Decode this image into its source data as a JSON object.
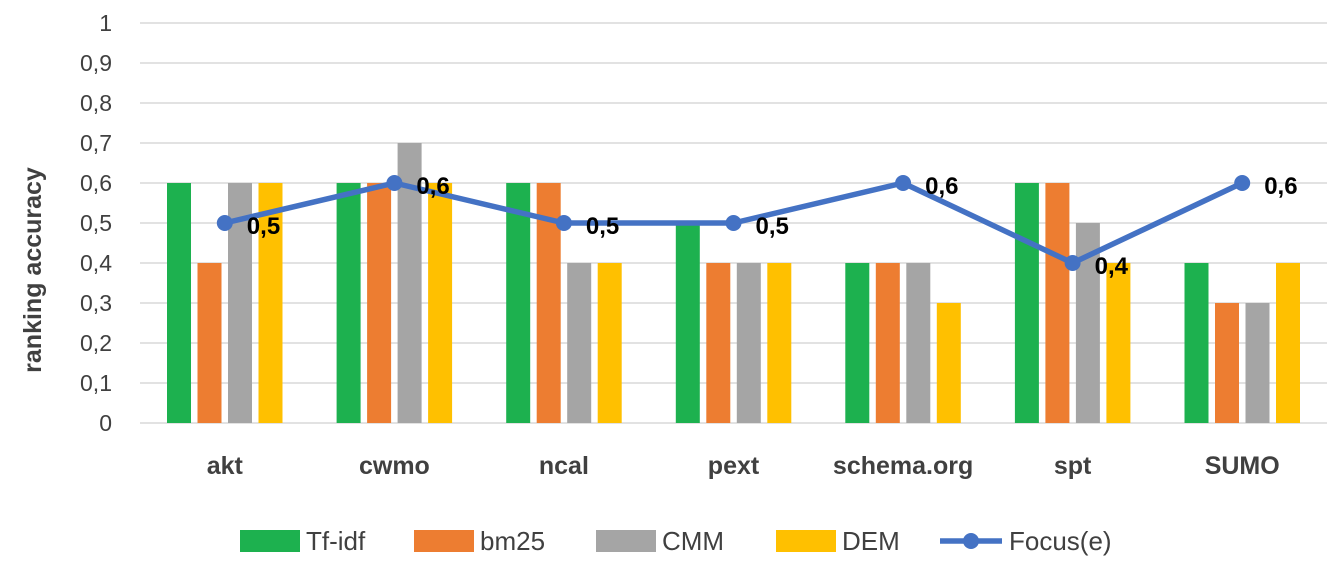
{
  "chart_data": {
    "type": "bar",
    "title": "",
    "xlabel": "",
    "ylabel": "ranking accuracy",
    "ylim": [
      0,
      1
    ],
    "y_ticks": [
      "0",
      "0,1",
      "0,2",
      "0,3",
      "0,4",
      "0,5",
      "0,6",
      "0,7",
      "0,8",
      "0,9",
      "1"
    ],
    "grid": true,
    "legend_position": "bottom",
    "categories": [
      "akt",
      "cwmo",
      "ncal",
      "pext",
      "schema.org",
      "spt",
      "SUMO"
    ],
    "series": [
      {
        "name": "Tf-idf",
        "kind": "bar",
        "color": "#1db14f",
        "values": [
          0.6,
          0.6,
          0.6,
          0.5,
          0.4,
          0.6,
          0.4
        ]
      },
      {
        "name": "bm25",
        "kind": "bar",
        "color": "#ed7d31",
        "values": [
          0.4,
          0.6,
          0.6,
          0.4,
          0.4,
          0.6,
          0.3
        ]
      },
      {
        "name": "CMM",
        "kind": "bar",
        "color": "#a5a5a5",
        "values": [
          0.6,
          0.7,
          0.4,
          0.4,
          0.4,
          0.5,
          0.3
        ]
      },
      {
        "name": "DEM",
        "kind": "bar",
        "color": "#ffc000",
        "values": [
          0.6,
          0.6,
          0.4,
          0.4,
          0.3,
          0.4,
          0.4
        ]
      },
      {
        "name": "Focus(e)",
        "kind": "line",
        "color": "#4472c4",
        "values": [
          0.5,
          0.6,
          0.5,
          0.5,
          0.6,
          0.4,
          0.6
        ],
        "labels": [
          "0,5",
          "0,6",
          "0,5",
          "0,5",
          "0,6",
          "0,4",
          "0,6"
        ]
      }
    ]
  }
}
